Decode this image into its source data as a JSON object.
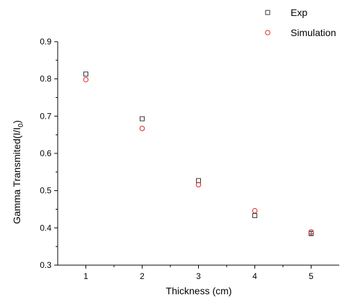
{
  "chart_data": {
    "type": "scatter",
    "xlabel": "Thickness (cm)",
    "ylabel": "Gamma Transmited(I/I₀)",
    "ylabel_parts": {
      "main": "Gamma Transmited(I/I",
      "sub": "0",
      "close": ")"
    },
    "x_ticks": [
      "1",
      "2",
      "3",
      "4",
      "5"
    ],
    "y_ticks": [
      "0.3",
      "0.4",
      "0.5",
      "0.6",
      "0.7",
      "0.8",
      "0.9"
    ],
    "xlim": [
      0.5,
      5.5
    ],
    "ylim": [
      0.3,
      0.9
    ],
    "grid": false,
    "legend_position": "top-right",
    "series": [
      {
        "name": "Exp",
        "marker": "square",
        "color": "#333333",
        "x": [
          1,
          2,
          3,
          4,
          5
        ],
        "y": [
          0.813,
          0.693,
          0.527,
          0.433,
          0.385
        ],
        "y_err": [
          0,
          0,
          0,
          0,
          0.006
        ]
      },
      {
        "name": "Simulation",
        "marker": "circle",
        "color": "#e02020",
        "x": [
          1,
          2,
          3,
          4,
          5
        ],
        "y": [
          0.798,
          0.667,
          0.516,
          0.446,
          0.389
        ]
      }
    ]
  }
}
